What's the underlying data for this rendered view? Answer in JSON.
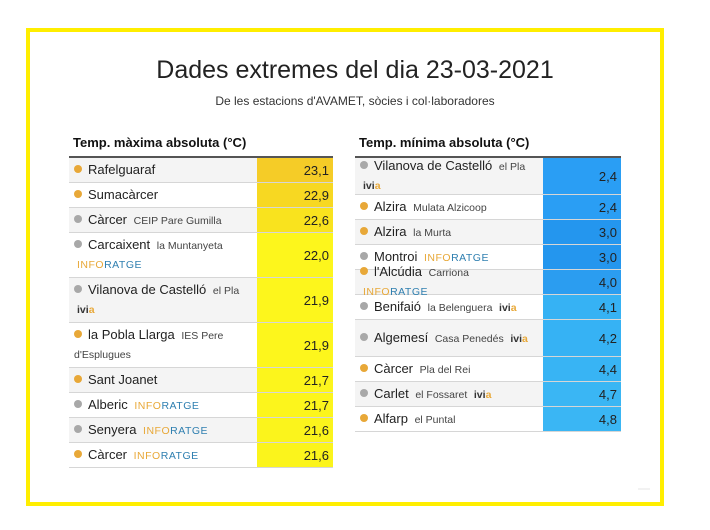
{
  "header": {
    "title": "Dades extremes del dia 23-03-2021",
    "subtitle": "De les estacions d'AVAMET, sòcies i col·laboradores"
  },
  "colors": {
    "frame": "#ffee00",
    "dot_orange": "#e8a838",
    "dot_gray": "#a8a8a8"
  },
  "max_table": {
    "heading": "Temp. màxima absoluta (°C)",
    "rows": [
      {
        "name": "Rafelguaraf",
        "sub": "",
        "brand": "",
        "value": "23,1",
        "dot": "orange",
        "color": "#f5cc27"
      },
      {
        "name": "Sumacàrcer",
        "sub": "",
        "brand": "",
        "value": "22,9",
        "dot": "orange",
        "color": "#f7d822"
      },
      {
        "name": "Càrcer",
        "sub": "CEIP Pare Gumilla",
        "brand": "",
        "value": "22,6",
        "dot": "gray",
        "color": "#f9e31e"
      },
      {
        "name": "Carcaixent",
        "sub": "la Muntanyeta",
        "brand": "inforatge",
        "value": "22,0",
        "dot": "gray",
        "color": "#fdf61c"
      },
      {
        "name": "Vilanova de Castelló",
        "sub": "el Pla",
        "brand": "ivia",
        "value": "21,9",
        "dot": "gray",
        "color": "#fdf61c"
      },
      {
        "name": "la Pobla Llarga",
        "sub": "IES Pere d'Esplugues",
        "brand": "",
        "value": "21,9",
        "dot": "orange",
        "color": "#fdf61c"
      },
      {
        "name": "Sant Joanet",
        "sub": "",
        "brand": "",
        "value": "21,7",
        "dot": "orange",
        "color": "#fcf51c"
      },
      {
        "name": "Alberic",
        "sub": "",
        "brand": "inforatge",
        "value": "21,7",
        "dot": "gray",
        "color": "#fcf51c"
      },
      {
        "name": "Senyera",
        "sub": "",
        "brand": "inforatge",
        "value": "21,6",
        "dot": "gray",
        "color": "#fbf41c"
      },
      {
        "name": "Càrcer",
        "sub": "",
        "brand": "inforatge",
        "value": "21,6",
        "dot": "orange",
        "color": "#fbf41c"
      }
    ]
  },
  "min_table": {
    "heading": "Temp. mínima absoluta (°C)",
    "rows": [
      {
        "name": "Vilanova de Castelló",
        "sub": "el Pla",
        "brand": "ivia",
        "value": "2,4",
        "dot": "gray",
        "color": "#2a9ef4"
      },
      {
        "name": "Alzira",
        "sub": "Mulata Alzicoop",
        "brand": "",
        "value": "2,4",
        "dot": "orange",
        "color": "#2a9ef4"
      },
      {
        "name": "Alzira",
        "sub": "la Murta",
        "brand": "",
        "value": "3,0",
        "dot": "orange",
        "color": "#2496ee"
      },
      {
        "name": "Montroi",
        "sub": "",
        "brand": "inforatge",
        "value": "3,0",
        "dot": "gray",
        "color": "#2496ee"
      },
      {
        "name": "l'Alcúdia",
        "sub": "Carriona",
        "brand": "inforatge",
        "value": "4,0",
        "dot": "orange",
        "color": "#2b9df0"
      },
      {
        "name": "Benifaió",
        "sub": "la Belenguera",
        "brand": "ivia",
        "value": "4,1",
        "dot": "gray",
        "color": "#36b2f4"
      },
      {
        "name": "Algemesí",
        "sub": "Casa Penedés",
        "brand": "ivia",
        "value": "4,2",
        "dot": "gray",
        "color": "#36b2f4"
      },
      {
        "name": "Càrcer",
        "sub": "Pla del Rei",
        "brand": "",
        "value": "4,4",
        "dot": "orange",
        "color": "#38b4f4"
      },
      {
        "name": "Carlet",
        "sub": "el Fossaret",
        "brand": "ivia",
        "value": "4,7",
        "dot": "gray",
        "color": "#3ab6f4"
      },
      {
        "name": "Alfarp",
        "sub": "el Puntal",
        "brand": "",
        "value": "4,8",
        "dot": "orange",
        "color": "#3ab6f4"
      }
    ]
  },
  "brands": {
    "inforatge_a": "INFO",
    "inforatge_b": "RATGE",
    "ivia_a": "ivi",
    "ivia_b": "a"
  }
}
